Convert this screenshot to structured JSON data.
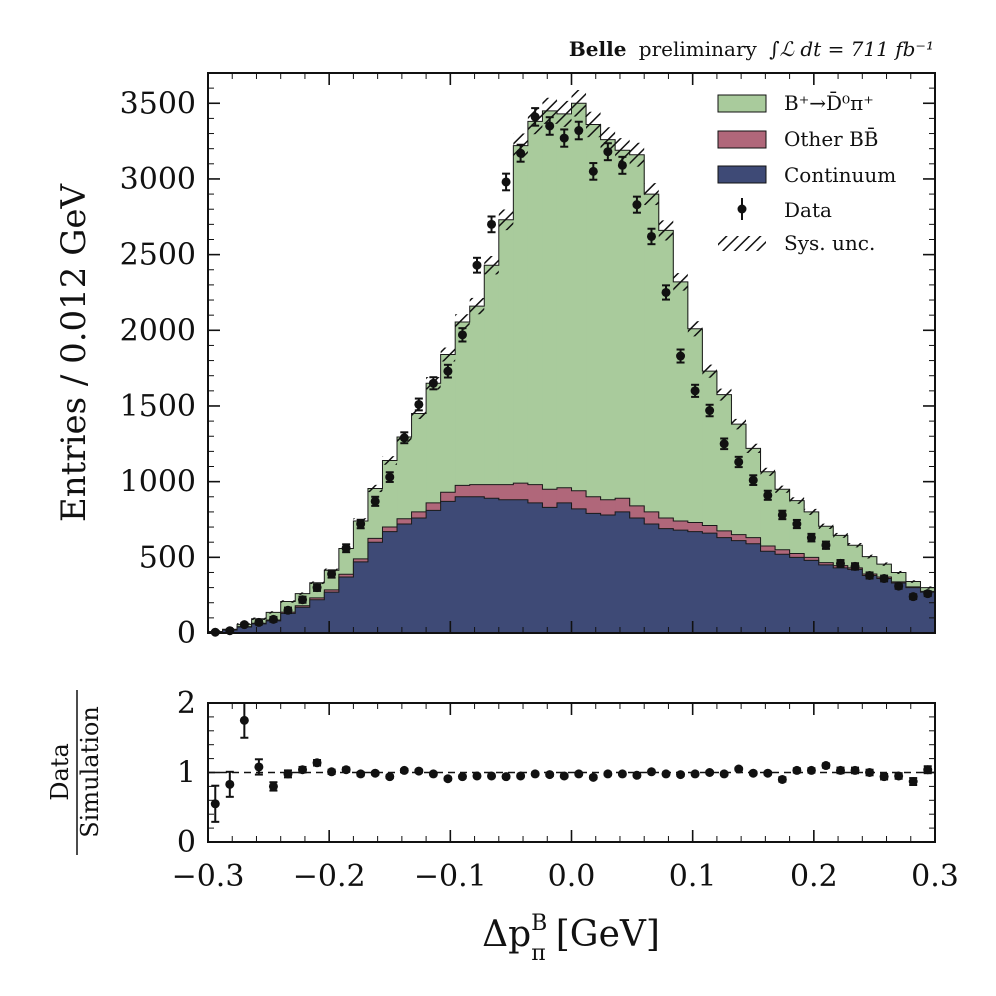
{
  "header": {
    "experiment": "Belle",
    "status": "preliminary",
    "luminosity": "∫ℒ dt = 711 fb⁻¹"
  },
  "colors": {
    "signal": "#a9cb9c",
    "other_bb": "#b0677a",
    "continuum": "#3e4a76",
    "data": "#111111"
  },
  "chart_data": [
    {
      "type": "area",
      "panel": "main",
      "ylabel": "Entries / 0.012 GeV",
      "xlim": [
        -0.3,
        0.3
      ],
      "ylim": [
        0,
        3700
      ],
      "yticks": [
        "0",
        "500",
        "1000",
        "1500",
        "2000",
        "2500",
        "3000",
        "3500"
      ],
      "bin_edges": [
        -0.3,
        -0.288,
        -0.276,
        -0.264,
        -0.252,
        -0.24,
        -0.228,
        -0.216,
        -0.204,
        -0.192,
        -0.18,
        -0.168,
        -0.156,
        -0.144,
        -0.132,
        -0.12,
        -0.108,
        -0.096,
        -0.084,
        -0.072,
        -0.06,
        -0.048,
        -0.036,
        -0.024,
        -0.012,
        0.0,
        0.012,
        0.024,
        0.036,
        0.048,
        0.06,
        0.072,
        0.084,
        0.096,
        0.108,
        0.12,
        0.132,
        0.144,
        0.156,
        0.168,
        0.18,
        0.192,
        0.204,
        0.216,
        0.228,
        0.24,
        0.252,
        0.264,
        0.276,
        0.288,
        0.3
      ],
      "series": [
        {
          "name": "Continuum",
          "values": [
            10,
            20,
            40,
            60,
            80,
            130,
            170,
            220,
            270,
            370,
            470,
            600,
            670,
            720,
            760,
            810,
            870,
            900,
            900,
            890,
            880,
            880,
            860,
            830,
            860,
            820,
            790,
            780,
            800,
            760,
            720,
            690,
            680,
            670,
            660,
            630,
            610,
            590,
            540,
            520,
            500,
            480,
            450,
            430,
            420,
            380,
            360,
            330,
            300,
            270
          ]
        },
        {
          "name": "Other BB̄",
          "values": [
            0,
            0,
            2,
            4,
            6,
            8,
            10,
            12,
            15,
            18,
            20,
            25,
            30,
            35,
            40,
            50,
            60,
            75,
            80,
            90,
            100,
            110,
            120,
            120,
            100,
            120,
            110,
            100,
            90,
            80,
            80,
            70,
            60,
            60,
            50,
            45,
            40,
            40,
            35,
            30,
            25,
            20,
            15,
            15,
            10,
            10,
            10,
            8,
            5,
            5
          ]
        },
        {
          "name": "B⁺→D̄⁰π⁺",
          "values": [
            0,
            5,
            15,
            30,
            50,
            70,
            80,
            100,
            130,
            170,
            250,
            330,
            440,
            540,
            650,
            790,
            910,
            1080,
            1180,
            1450,
            1750,
            2230,
            2400,
            2500,
            2470,
            2560,
            2460,
            2380,
            2300,
            2320,
            2100,
            1900,
            1580,
            1280,
            1020,
            900,
            730,
            590,
            490,
            400,
            350,
            300,
            240,
            200,
            150,
            115,
            85,
            62,
            35,
            25
          ]
        }
      ],
      "data": {
        "name": "Data",
        "x": [
          -0.294,
          -0.282,
          -0.27,
          -0.258,
          -0.246,
          -0.234,
          -0.222,
          -0.21,
          -0.198,
          -0.186,
          -0.174,
          -0.162,
          -0.15,
          -0.138,
          -0.126,
          -0.114,
          -0.102,
          -0.09,
          -0.078,
          -0.066,
          -0.054,
          -0.042,
          -0.03,
          -0.018,
          -0.006,
          0.006,
          0.018,
          0.03,
          0.042,
          0.054,
          0.066,
          0.078,
          0.09,
          0.102,
          0.114,
          0.126,
          0.138,
          0.15,
          0.162,
          0.174,
          0.186,
          0.198,
          0.21,
          0.222,
          0.234,
          0.246,
          0.258,
          0.27,
          0.282,
          0.294
        ],
        "y": [
          5,
          15,
          55,
          70,
          90,
          150,
          220,
          300,
          390,
          560,
          720,
          870,
          1030,
          1290,
          1510,
          1650,
          1730,
          1970,
          2430,
          2700,
          2980,
          3170,
          3410,
          3350,
          3270,
          3320,
          3050,
          3180,
          3090,
          2830,
          2620,
          2250,
          1830,
          1600,
          1470,
          1250,
          1130,
          1010,
          910,
          780,
          720,
          630,
          580,
          460,
          440,
          380,
          360,
          310,
          240,
          260
        ],
        "yerr": [
          8,
          10,
          12,
          14,
          16,
          18,
          20,
          22,
          24,
          26,
          28,
          30,
          32,
          36,
          39,
          40,
          42,
          44,
          49,
          52,
          55,
          56,
          58,
          58,
          57,
          58,
          55,
          56,
          56,
          53,
          51,
          47,
          43,
          40,
          38,
          35,
          34,
          32,
          30,
          28,
          27,
          25,
          24,
          22,
          21,
          20,
          19,
          18,
          16,
          16
        ]
      },
      "legend": {
        "position": "top-right",
        "entries": [
          "B⁺→D̄⁰π⁺",
          "Other BB̄",
          "Continuum",
          "Data",
          "Sys. unc."
        ]
      },
      "grid": false
    },
    {
      "type": "scatter",
      "panel": "ratio",
      "ylabel_numerator": "Data",
      "ylabel_denominator": "Simulation",
      "xlabel": "Δp",
      "xlabel_sub": "π",
      "xlabel_sup": "B",
      "xlabel_unit": "[GeV]",
      "xlim": [
        -0.3,
        0.3
      ],
      "ylim": [
        0,
        2
      ],
      "xticks": [
        "−0.3",
        "−0.2",
        "−0.1",
        "0.0",
        "0.1",
        "0.2",
        "0.3"
      ],
      "yticks": [
        "0",
        "1",
        "2"
      ],
      "reference_line": 1,
      "x": [
        -0.294,
        -0.282,
        -0.27,
        -0.258,
        -0.246,
        -0.234,
        -0.222,
        -0.21,
        -0.198,
        -0.186,
        -0.174,
        -0.162,
        -0.15,
        -0.138,
        -0.126,
        -0.114,
        -0.102,
        -0.09,
        -0.078,
        -0.066,
        -0.054,
        -0.042,
        -0.03,
        -0.018,
        -0.006,
        0.006,
        0.018,
        0.03,
        0.042,
        0.054,
        0.066,
        0.078,
        0.09,
        0.102,
        0.114,
        0.126,
        0.138,
        0.15,
        0.162,
        0.174,
        0.186,
        0.198,
        0.21,
        0.222,
        0.234,
        0.246,
        0.258,
        0.27,
        0.282,
        0.294
      ],
      "y": [
        0.55,
        0.83,
        1.75,
        1.08,
        0.8,
        0.98,
        1.04,
        1.14,
        1.01,
        1.04,
        0.98,
        0.99,
        0.94,
        1.03,
        1.02,
        0.98,
        0.91,
        0.94,
        0.95,
        0.95,
        0.94,
        0.95,
        0.98,
        0.97,
        0.95,
        0.98,
        0.93,
        0.98,
        0.98,
        0.96,
        1.01,
        0.98,
        0.97,
        0.98,
        1.0,
        0.98,
        1.05,
        0.99,
        0.99,
        0.9,
        1.03,
        1.03,
        1.1,
        1.03,
        1.03,
        1.0,
        0.94,
        0.95,
        0.87,
        1.04
      ],
      "yerr": [
        0.26,
        0.18,
        0.25,
        0.11,
        0.06,
        0.05,
        0.04,
        0.04,
        0.03,
        0.03,
        0.025,
        0.02,
        0.02,
        0.02,
        0.02,
        0.02,
        0.02,
        0.02,
        0.02,
        0.02,
        0.02,
        0.02,
        0.02,
        0.02,
        0.02,
        0.02,
        0.02,
        0.02,
        0.02,
        0.02,
        0.02,
        0.02,
        0.02,
        0.02,
        0.02,
        0.02,
        0.02,
        0.02,
        0.02,
        0.03,
        0.03,
        0.03,
        0.03,
        0.04,
        0.04,
        0.04,
        0.04,
        0.04,
        0.05,
        0.05
      ]
    }
  ]
}
